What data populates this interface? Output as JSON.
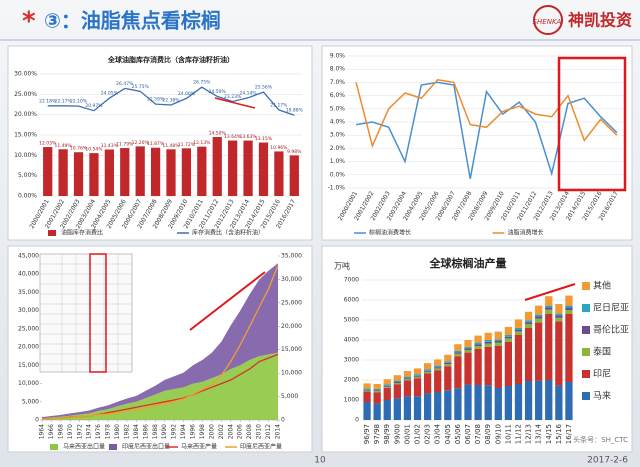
{
  "header": {
    "mark": "*",
    "title": "③：油脂焦点看棕榈",
    "logo_cn": "神凯投资",
    "logo_en": "SHENKAI"
  },
  "footer": {
    "page": "10",
    "date": "2017-2-6",
    "watermark": "头条号：SH_CTC"
  },
  "chart_data": [
    {
      "type": "combo",
      "title": "全球油脂库存消费比（含库存油籽折油）",
      "categories": [
        "2000/2001",
        "2001/2002",
        "2002/2003",
        "2003/2004",
        "2004/2005",
        "2005/2006",
        "2006/2007",
        "2007/2008",
        "2008/2009",
        "2009/2010",
        "2010/2011",
        "2011/2012",
        "2012/2013",
        "2013/2014",
        "2014/2015",
        "2015/2016",
        "2016/2017"
      ],
      "series": [
        {
          "name": "油脂库存消费比",
          "kind": "bar",
          "color": "#c0282b",
          "values": [
            12.03,
            11.49,
            10.76,
            10.54,
            11.43,
            11.79,
            12.2,
            11.87,
            11.48,
            11.72,
            12.13,
            14.5,
            13.64,
            13.63,
            13.15,
            10.96,
            9.98
          ],
          "value_labels": [
            "12.03%",
            "11.49%",
            "10.76%",
            "10.54%",
            "11.43%",
            "11.79%",
            "12.20%",
            "11.87%",
            "11.48%",
            "11.72%",
            "12.13%",
            "14.50%",
            "13.64%",
            "13.63%",
            "13.15%",
            "10.96%",
            "9.98%"
          ]
        },
        {
          "name": "库存消费比（含油籽折油）",
          "kind": "line",
          "color": "#3a6fb0",
          "values": [
            22.18,
            22.17,
            22.1,
            20.97,
            24.05,
            26.47,
            25.75,
            22.59,
            22.38,
            24.0,
            26.75,
            24.5,
            23.23,
            24.14,
            25.56,
            21.17,
            19.88
          ],
          "value_labels": [
            "22.18%",
            "22.17%",
            "22.10%",
            "20.97%",
            "24.05%",
            "26.47%",
            "25.75%",
            "22.59%",
            "22.38%",
            "24.00%",
            "26.75%",
            "24.50%",
            "23.23%",
            "24.14%",
            "25.56%",
            "21.17%",
            "19.88%"
          ]
        }
      ],
      "ylim": [
        0,
        30
      ],
      "yticks": [
        {
          "value": 0,
          "label": "0.00%"
        },
        {
          "value": 5,
          "label": "5.00%"
        },
        {
          "value": 10,
          "label": "10.00%"
        },
        {
          "value": 15,
          "label": "15.00%"
        },
        {
          "value": 20,
          "label": "20.00%"
        },
        {
          "value": 25,
          "label": "25.00%"
        },
        {
          "value": 30,
          "label": "30.00%"
        }
      ],
      "grid": true,
      "legend": "bottom"
    },
    {
      "type": "line",
      "categories": [
        "2000/2001",
        "2001/2002",
        "2002/2003",
        "2003/2004",
        "2004/2005",
        "2005/2006",
        "2006/2007",
        "2007/2008",
        "2008/2009",
        "2009/2010",
        "2010/2011",
        "2011/2012",
        "2012/2013",
        "2013/2014",
        "2014/2015",
        "2015/2016",
        "2016/2017"
      ],
      "series": [
        {
          "name": "棕榈油消费增长",
          "kind": "line",
          "color": "#4a8fd0",
          "values": [
            3.8,
            4.0,
            3.6,
            1.0,
            6.8,
            7.0,
            6.8,
            -0.3,
            6.3,
            4.6,
            5.5,
            4.0,
            0.1,
            5.4,
            5.8,
            4.4,
            3.2
          ]
        },
        {
          "name": "油脂消费增长",
          "kind": "line",
          "color": "#ef8a2c",
          "values": [
            7.0,
            2.2,
            5.0,
            6.2,
            5.8,
            7.2,
            7.0,
            3.8,
            3.6,
            4.8,
            5.2,
            4.6,
            4.4,
            6.0,
            2.6,
            4.2,
            3.0
          ]
        }
      ],
      "ylim": [
        -1,
        9
      ],
      "yticks": [
        {
          "value": -1,
          "label": "-1.0%"
        },
        {
          "value": 0,
          "label": "0.0%"
        },
        {
          "value": 1,
          "label": "1.0%"
        },
        {
          "value": 2,
          "label": "2.0%"
        },
        {
          "value": 3,
          "label": "3.0%"
        },
        {
          "value": 4,
          "label": "4.0%"
        },
        {
          "value": 5,
          "label": "5.0%"
        },
        {
          "value": 6,
          "label": "6.0%"
        },
        {
          "value": 7,
          "label": "7.0%"
        },
        {
          "value": 8,
          "label": "8.0%"
        },
        {
          "value": 9,
          "label": "9.0%"
        }
      ],
      "grid": true,
      "legend": "bottom"
    },
    {
      "type": "area",
      "x": [
        1964,
        1966,
        1968,
        1970,
        1972,
        1974,
        1976,
        1978,
        1980,
        1982,
        1984,
        1986,
        1988,
        1990,
        1992,
        1994,
        1996,
        1998,
        2000,
        2002,
        2004,
        2006,
        2008,
        2010,
        2012,
        2014
      ],
      "xlim": [
        1964,
        2014
      ],
      "xticks": [
        1964,
        1966,
        1968,
        1970,
        1972,
        1974,
        1976,
        1978,
        1980,
        1982,
        1984,
        1986,
        1988,
        1990,
        1992,
        1994,
        1996,
        1998,
        2000,
        2002,
        2004,
        2006,
        2008,
        2010,
        2012,
        2014
      ],
      "series": [
        {
          "name": "马来西亚出口量",
          "kind": "area",
          "color": "#8dc63f",
          "values": [
            500,
            700,
            900,
            1200,
            1500,
            1800,
            2500,
            3000,
            3800,
            4500,
            5000,
            6000,
            7000,
            8000,
            8500,
            9000,
            10000,
            10500,
            11500,
            12500,
            14000,
            15000,
            16500,
            17500,
            18000,
            18500
          ]
        },
        {
          "name": "印度尼西亚出口量",
          "kind": "area",
          "color": "#7b5aa6",
          "values": [
            300,
            400,
            500,
            600,
            700,
            800,
            900,
            1000,
            1200,
            1400,
            1600,
            2000,
            2400,
            3000,
            3500,
            4000,
            5000,
            6000,
            7000,
            9000,
            12000,
            15000,
            18000,
            21000,
            23000,
            24500
          ]
        },
        {
          "name": "马来西亚产量",
          "kind": "line",
          "color": "#d9302c",
          "values": [
            300,
            400,
            500,
            700,
            900,
            1100,
            1500,
            2000,
            2500,
            3000,
            3500,
            4000,
            4500,
            5000,
            5500,
            6000,
            7000,
            8000,
            9000,
            10000,
            11000,
            12500,
            14000,
            16000,
            17000,
            18000
          ]
        },
        {
          "name": "印度尼西亚产量",
          "kind": "line",
          "axis": "y2",
          "color": "#f0a030",
          "values": [
            200,
            300,
            400,
            500,
            700,
            900,
            1100,
            1300,
            1600,
            1900,
            2200,
            2600,
            3000,
            3500,
            4000,
            4500,
            5500,
            6500,
            7500,
            9500,
            12500,
            16000,
            20000,
            24000,
            28000,
            33000
          ]
        }
      ],
      "ylim": [
        0,
        45000
      ],
      "yticks": [
        0,
        {
          "value": 5000,
          "label": "5,000"
        },
        {
          "value": 10000,
          "label": "10,000"
        },
        {
          "value": 15000,
          "label": "15,000"
        },
        {
          "value": 20000,
          "label": "20,000"
        },
        {
          "value": 25000,
          "label": "25,000"
        },
        {
          "value": 30000,
          "label": "30,000"
        },
        {
          "value": 35000,
          "label": "35,000"
        },
        {
          "value": 40000,
          "label": "40,000"
        },
        {
          "value": 45000,
          "label": "45,000"
        }
      ],
      "y2lim": [
        0,
        35000
      ],
      "y2ticks": [
        0,
        {
          "value": 5000,
          "label": "5,000"
        },
        {
          "value": 10000,
          "label": "10,000"
        },
        {
          "value": 15000,
          "label": "15,000"
        },
        {
          "value": 20000,
          "label": "20,000"
        },
        {
          "value": 25000,
          "label": "25,000"
        },
        {
          "value": 30000,
          "label": "30,000"
        },
        {
          "value": 35000,
          "label": "35,000"
        }
      ],
      "grid": false,
      "legend": "bottom"
    },
    {
      "type": "stacked-bar",
      "title": "全球棕榈油产量",
      "y_label": "万吨",
      "categories": [
        "96/97",
        "97/98",
        "98/99",
        "99/00",
        "00/01",
        "01/02",
        "02/03",
        "03/04",
        "04/05",
        "05/06",
        "06/07",
        "07/08",
        "08/09",
        "09/10",
        "10/11",
        "11/12",
        "12/13",
        "13/14",
        "14/15",
        "15/16",
        "16/17"
      ],
      "series": [
        {
          "name": "马来",
          "color": "#2e6db4",
          "values": [
            900,
            830,
            1000,
            1080,
            1180,
            1190,
            1330,
            1400,
            1490,
            1590,
            1770,
            1750,
            1740,
            1600,
            1700,
            1800,
            1950,
            1960,
            2000,
            1730,
            1900
          ]
        },
        {
          "name": "印尼",
          "color": "#c8332f",
          "values": [
            520,
            560,
            610,
            710,
            800,
            900,
            1000,
            1090,
            1200,
            1600,
            1600,
            1810,
            1920,
            2100,
            2200,
            2450,
            2650,
            2910,
            3300,
            3200,
            3400
          ]
        },
        {
          "name": "泰国",
          "color": "#8ab43c",
          "values": [
            50,
            50,
            50,
            60,
            60,
            70,
            80,
            90,
            100,
            120,
            130,
            140,
            160,
            170,
            180,
            180,
            190,
            200,
            220,
            180,
            200
          ]
        },
        {
          "name": "哥伦比亚",
          "color": "#6a4c93",
          "values": [
            40,
            40,
            50,
            50,
            50,
            50,
            50,
            60,
            70,
            70,
            80,
            80,
            90,
            80,
            80,
            90,
            100,
            110,
            110,
            120,
            130
          ]
        },
        {
          "name": "尼日尼亚",
          "color": "#2aa6c0",
          "values": [
            70,
            70,
            70,
            70,
            80,
            80,
            80,
            80,
            80,
            80,
            80,
            90,
            90,
            90,
            90,
            90,
            90,
            90,
            90,
            90,
            90
          ]
        },
        {
          "name": "其他",
          "color": "#f39a33",
          "values": [
            250,
            250,
            260,
            270,
            280,
            290,
            300,
            310,
            320,
            330,
            340,
            350,
            360,
            380,
            400,
            420,
            430,
            450,
            470,
            480,
            500
          ]
        }
      ],
      "ylim": [
        0,
        7000
      ],
      "yticks": [
        0,
        1000,
        2000,
        3000,
        4000,
        5000,
        6000,
        7000
      ],
      "grid": true,
      "legend": "right"
    }
  ]
}
